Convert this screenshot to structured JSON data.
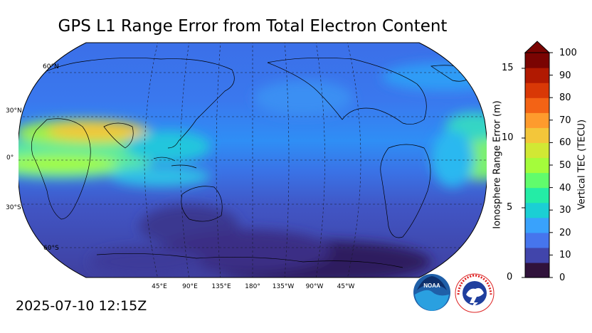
{
  "title": "GPS L1 Range Error from Total Electron Content",
  "timestamp": "2025-07-10 12:15Z",
  "map": {
    "projection": "Robinson",
    "center_longitude": "180°",
    "lat_labels": [
      "60°N",
      "30°N",
      "0°",
      "30°S",
      "60°S"
    ],
    "lon_labels": [
      "45°E",
      "90°E",
      "135°E",
      "180°",
      "135°W",
      "90°W",
      "45°W"
    ],
    "grid": true
  },
  "colorbar": {
    "left_label": "Ionosphere Range Error (m)",
    "left_ticks": [
      "0",
      "5",
      "10",
      "15"
    ],
    "right_label": "Vertical TEC (TECU)",
    "right_ticks": [
      "0",
      "10",
      "20",
      "30",
      "40",
      "50",
      "60",
      "70",
      "80",
      "90",
      "100"
    ],
    "extend": "max",
    "colors": [
      "#30123b",
      "#4145ab",
      "#4675ed",
      "#39a2fc",
      "#1bcfd4",
      "#24eca6",
      "#61fc6c",
      "#a4fc3b",
      "#d1e834",
      "#f3c63a",
      "#fe9b2d",
      "#f36315",
      "#d93806",
      "#b11901",
      "#7a0402"
    ]
  },
  "logos": {
    "noaa": "NOAA",
    "nws_ring": "NATIONAL WEATHER SERVICE"
  }
}
